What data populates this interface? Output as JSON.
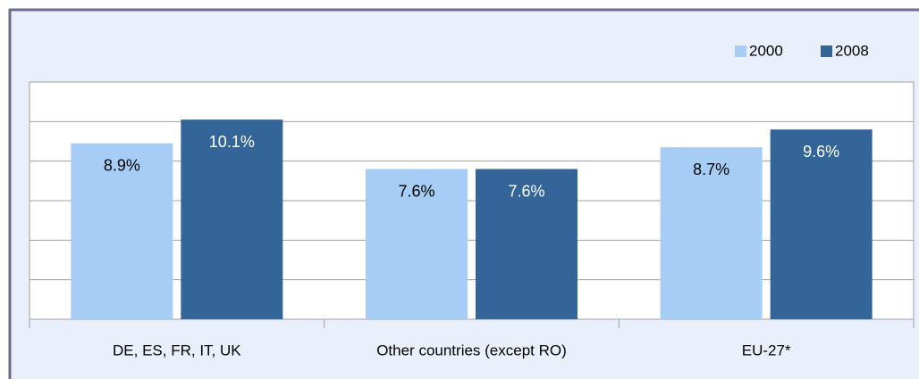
{
  "chart_data": {
    "type": "bar",
    "categories": [
      "DE, ES, FR, IT, UK",
      "Other countries (except RO)",
      "EU-27*"
    ],
    "series": [
      {
        "name": "2000",
        "color": "#a6cdf5",
        "values": [
          8.9,
          7.6,
          8.7
        ],
        "value_labels": [
          "8.9%",
          "7.6%",
          "8.7%"
        ]
      },
      {
        "name": "2008",
        "color": "#346599",
        "values": [
          10.1,
          7.6,
          9.6
        ],
        "value_labels": [
          "10.1%",
          "7.6%",
          "9.6%"
        ]
      }
    ],
    "ylim": [
      0,
      12
    ],
    "yticks": [
      0,
      2,
      4,
      6,
      8,
      10,
      12
    ],
    "grid": true,
    "legend": "top-right"
  }
}
